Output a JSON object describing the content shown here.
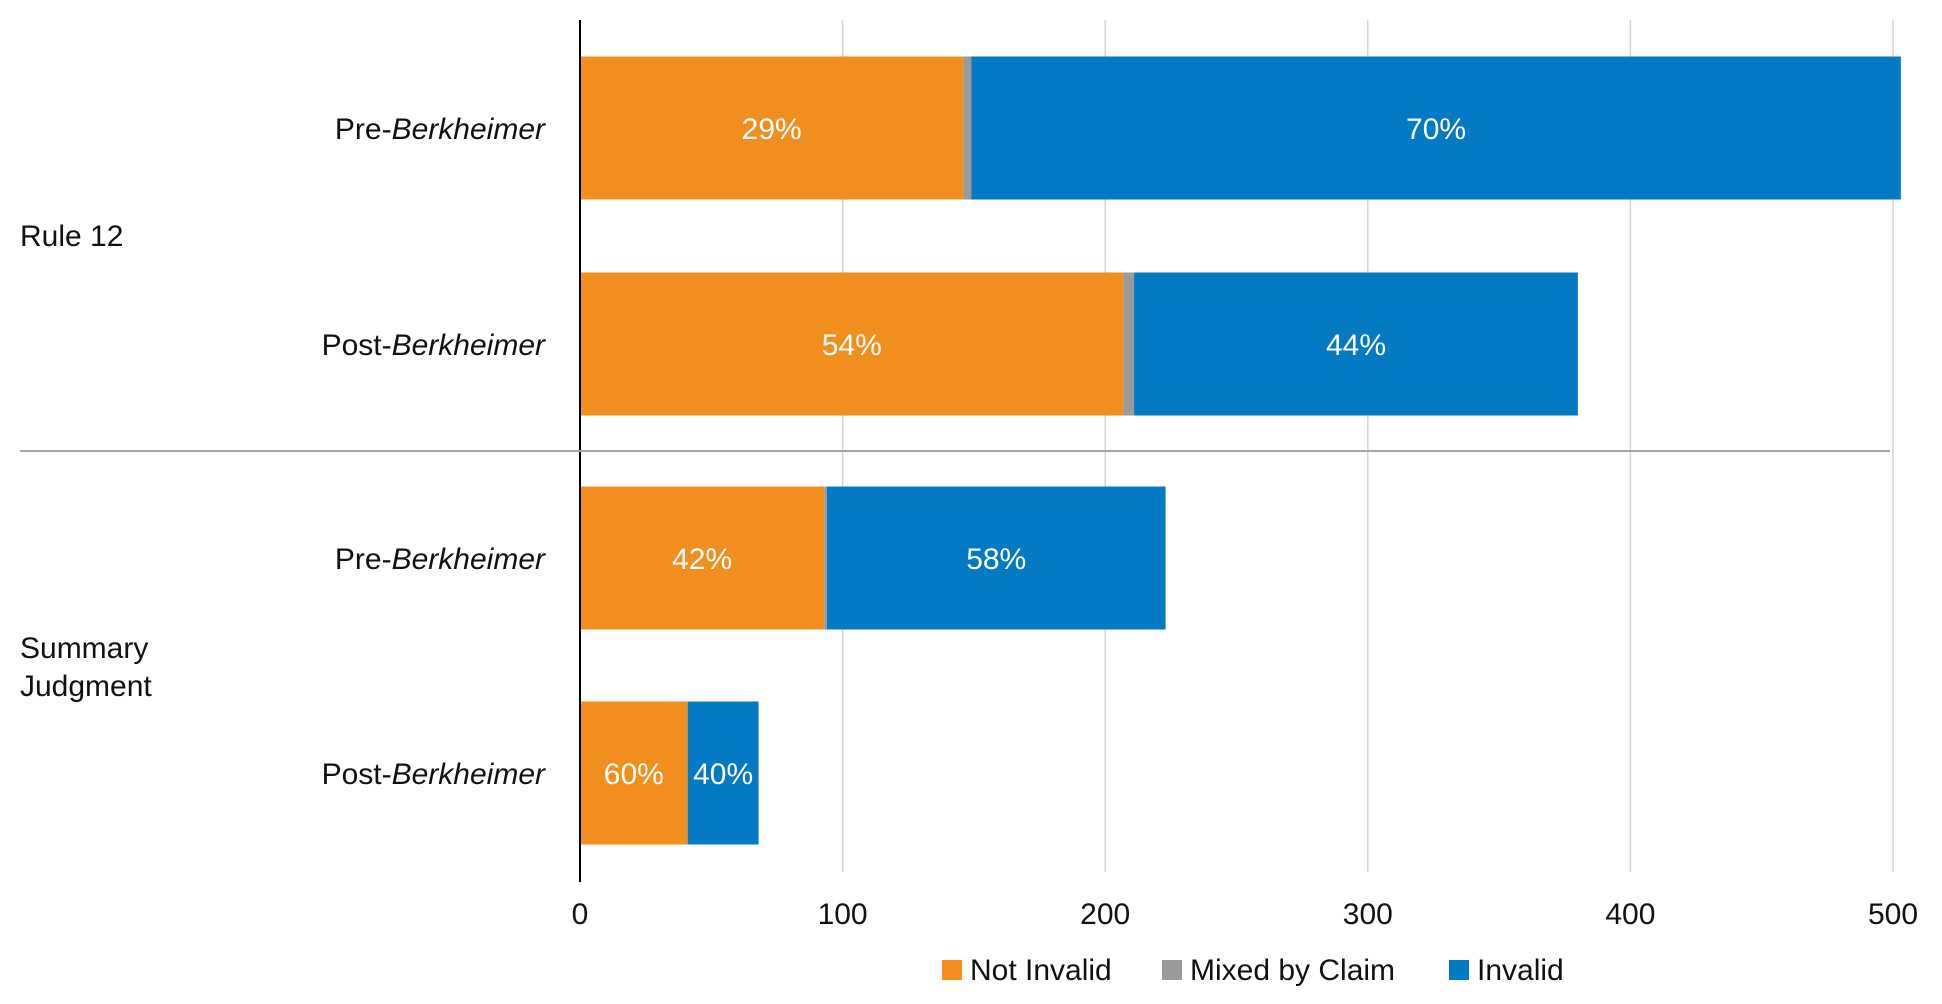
{
  "chart_data": {
    "type": "bar",
    "orientation": "horizontal",
    "stacked": true,
    "xlim": [
      0,
      500
    ],
    "x_ticks": [
      "0",
      "100",
      "200",
      "300",
      "400",
      "500"
    ],
    "grid": true,
    "legend_position": "bottom",
    "groups": [
      {
        "label": "Rule 12",
        "rows": [
          {
            "prefix": "Pre-",
            "name": "Berkheimer",
            "segments": [
              146,
              3,
              354
            ],
            "labels": [
              "29%",
              "",
              "70%"
            ]
          },
          {
            "prefix": "Post-",
            "name": "Berkheimer",
            "segments": [
              207,
              4,
              169
            ],
            "labels": [
              "54%",
              "",
              "44%"
            ]
          }
        ]
      },
      {
        "label_lines": [
          "Summary",
          "Judgment"
        ],
        "rows": [
          {
            "prefix": "Pre-",
            "name": "Berkheimer",
            "segments": [
              93,
              1,
              129
            ],
            "labels": [
              "42%",
              "",
              "58%"
            ]
          },
          {
            "prefix": "Post-",
            "name": "Berkheimer",
            "segments": [
              41,
              0,
              27
            ],
            "labels": [
              "60%",
              "",
              "40%"
            ]
          }
        ]
      }
    ],
    "series": [
      {
        "name": "Not Invalid",
        "color": "#F28E1E"
      },
      {
        "name": "Mixed by Claim",
        "color": "#9A9A9A"
      },
      {
        "name": "Invalid",
        "color": "#0479C4"
      }
    ]
  }
}
